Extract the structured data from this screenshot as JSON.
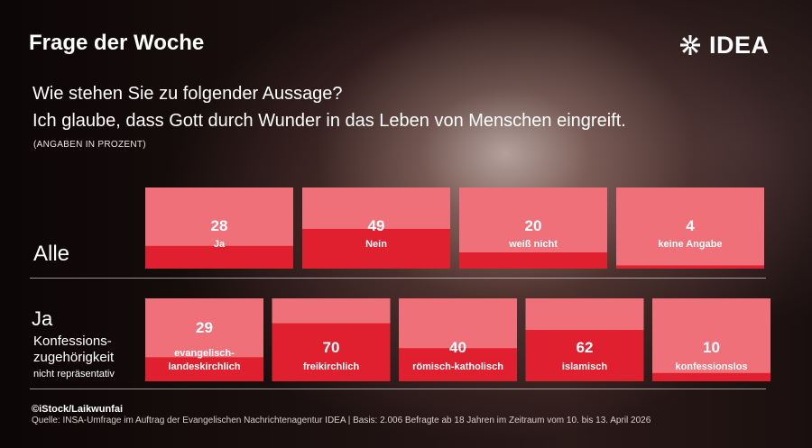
{
  "header": {
    "title": "Frage der Woche",
    "logo_text": "IDEA"
  },
  "question": {
    "line1": "Wie stehen Sie zu folgender Aussage?",
    "line2": "Ich glaube, dass Gott durch Wunder in das Leben von Menschen eingreift.",
    "unit_note": "(ANGABEN IN PROZENT)"
  },
  "rows": {
    "alle_label": "Alle",
    "ja_title": "Ja",
    "ja_sub1": "Konfessions-",
    "ja_sub2": "zugehörigkeit",
    "ja_note": "nicht repräsentativ"
  },
  "footer": {
    "credit": "©iStock/Laikwunfai",
    "source": "Quelle: INSA-Umfrage im Auftrag der Evangelischen Nachrichtenagentur IDEA | Basis: 2.006 Befragte ab 18 Jahren im Zeitraum vom 10. bis 13. April 2026"
  },
  "colors": {
    "box_light": "#ef7078",
    "box_fill": "#e0202e",
    "text": "#ffffff"
  },
  "chart_data": [
    {
      "type": "bar",
      "title": "Alle",
      "categories": [
        "Ja",
        "Nein",
        "weiß nicht",
        "keine Angabe"
      ],
      "values": [
        28,
        49,
        20,
        4
      ],
      "ylim": [
        0,
        100
      ],
      "unit": "Prozent"
    },
    {
      "type": "bar",
      "title": "Ja – Konfessionszugehörigkeit",
      "categories": [
        [
          "evangelisch-",
          "landeskirchlich"
        ],
        [
          "freikirchlich"
        ],
        [
          "römisch-katholisch"
        ],
        [
          "islamisch"
        ],
        [
          "konfessionslos"
        ]
      ],
      "values": [
        29,
        70,
        40,
        62,
        10
      ],
      "ylim": [
        0,
        100
      ],
      "unit": "Prozent"
    }
  ]
}
